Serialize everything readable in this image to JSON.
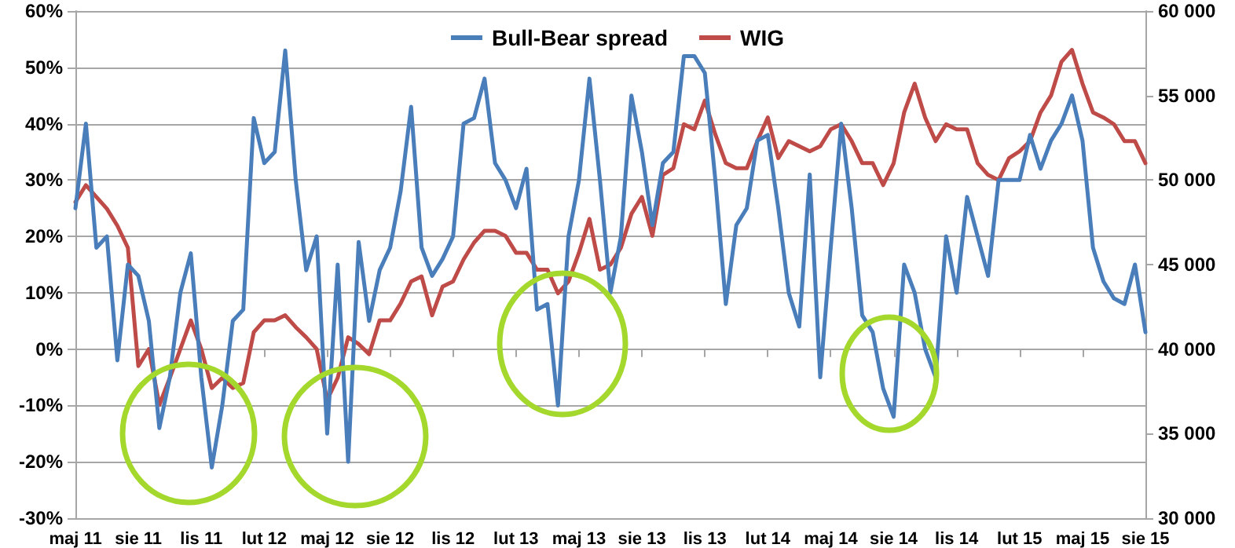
{
  "chart_data": {
    "type": "line",
    "categories": [
      "maj 11",
      null,
      null,
      null,
      null,
      null,
      "sie 11",
      null,
      null,
      null,
      null,
      null,
      "lis 11",
      null,
      null,
      null,
      null,
      null,
      "lut 12",
      null,
      null,
      null,
      null,
      null,
      "maj 12",
      null,
      null,
      null,
      null,
      null,
      "sie 12",
      null,
      null,
      null,
      null,
      null,
      "lis 12",
      null,
      null,
      null,
      null,
      null,
      "lut 13",
      null,
      null,
      null,
      null,
      null,
      "maj 13",
      null,
      null,
      null,
      null,
      null,
      "sie 13",
      null,
      null,
      null,
      null,
      null,
      "lis 13",
      null,
      null,
      null,
      null,
      null,
      "lut 14",
      null,
      null,
      null,
      null,
      null,
      "maj 14",
      null,
      null,
      null,
      null,
      null,
      "sie 14",
      null,
      null,
      null,
      null,
      null,
      "lis 14",
      null,
      null,
      null,
      null,
      null,
      "lut 15",
      null,
      null,
      null,
      null,
      null,
      "maj 15",
      null,
      null,
      null,
      null,
      null,
      "sie 15"
    ],
    "series": [
      {
        "name": "Bull-Bear spread",
        "color": "#4a7ebb",
        "values": [
          25,
          40,
          18,
          20,
          -2,
          15,
          13,
          5,
          -14,
          -5,
          10,
          17,
          -5,
          -21,
          -10,
          5,
          7,
          41,
          33,
          35,
          53,
          30,
          14,
          20,
          -15,
          15,
          -20,
          19,
          5,
          14,
          18,
          28,
          43,
          18,
          13,
          16,
          20,
          40,
          41,
          48,
          33,
          30,
          25,
          32,
          7,
          8,
          -10,
          20,
          30,
          48,
          30,
          10,
          20,
          45,
          35,
          22,
          33,
          35,
          52,
          52,
          49,
          30,
          8,
          22,
          25,
          37,
          38,
          25,
          10,
          4,
          31,
          -5,
          18,
          40,
          25,
          6,
          3,
          -7,
          -12,
          15,
          10,
          0,
          -5,
          20,
          10,
          27,
          20,
          13,
          30,
          30,
          30,
          38,
          32,
          37,
          40,
          45,
          37,
          18,
          12,
          9,
          8,
          15,
          3
        ]
      },
      {
        "name": "WIG",
        "color": "#be4b48",
        "axis": "y2",
        "values": [
          48700,
          49700,
          49000,
          48300,
          47300,
          46000,
          39000,
          40000,
          36700,
          38300,
          40000,
          41700,
          40000,
          37700,
          38300,
          37700,
          38000,
          41000,
          41700,
          41700,
          42000,
          41300,
          40700,
          40000,
          37000,
          38300,
          40700,
          40300,
          39700,
          41700,
          41700,
          42700,
          44000,
          44300,
          42000,
          43700,
          44000,
          45300,
          46300,
          47000,
          47000,
          46700,
          45700,
          45700,
          44700,
          44700,
          43300,
          44000,
          45700,
          47700,
          44700,
          45000,
          46000,
          48000,
          49000,
          46700,
          50300,
          50700,
          53300,
          53000,
          54700,
          52700,
          51000,
          50700,
          50700,
          52300,
          53700,
          51300,
          52300,
          52000,
          51700,
          52000,
          53000,
          53300,
          52300,
          51000,
          51000,
          49700,
          51000,
          54000,
          55700,
          53700,
          52300,
          53300,
          53000,
          53000,
          51000,
          50300,
          50000,
          51300,
          51700,
          52300,
          54000,
          55000,
          57000,
          57700,
          55700,
          54000,
          53700,
          53300,
          52300,
          52300,
          51000
        ]
      }
    ],
    "ylim": [
      -30,
      60
    ],
    "yticks": [
      {
        "value": -30,
        "label": "-30%"
      },
      {
        "value": -20,
        "label": "-20%"
      },
      {
        "value": -10,
        "label": "-10%"
      },
      {
        "value": 0,
        "label": "0%"
      },
      {
        "value": 10,
        "label": "10%"
      },
      {
        "value": 20,
        "label": "20%"
      },
      {
        "value": 30,
        "label": "30%"
      },
      {
        "value": 40,
        "label": "40%"
      },
      {
        "value": 50,
        "label": "50%"
      },
      {
        "value": 60,
        "label": "60%"
      }
    ],
    "y2lim": [
      30000,
      60000
    ],
    "y2ticks": [
      {
        "value": 30000,
        "label": "30 000"
      },
      {
        "value": 35000,
        "label": "35 000"
      },
      {
        "value": 40000,
        "label": "40 000"
      },
      {
        "value": 45000,
        "label": "45 000"
      },
      {
        "value": 50000,
        "label": "50 000"
      },
      {
        "value": 55000,
        "label": "55 000"
      },
      {
        "value": 60000,
        "label": "60 000"
      }
    ],
    "grid": "y",
    "legend": "top",
    "marker": "none",
    "line_style": "solid"
  }
}
